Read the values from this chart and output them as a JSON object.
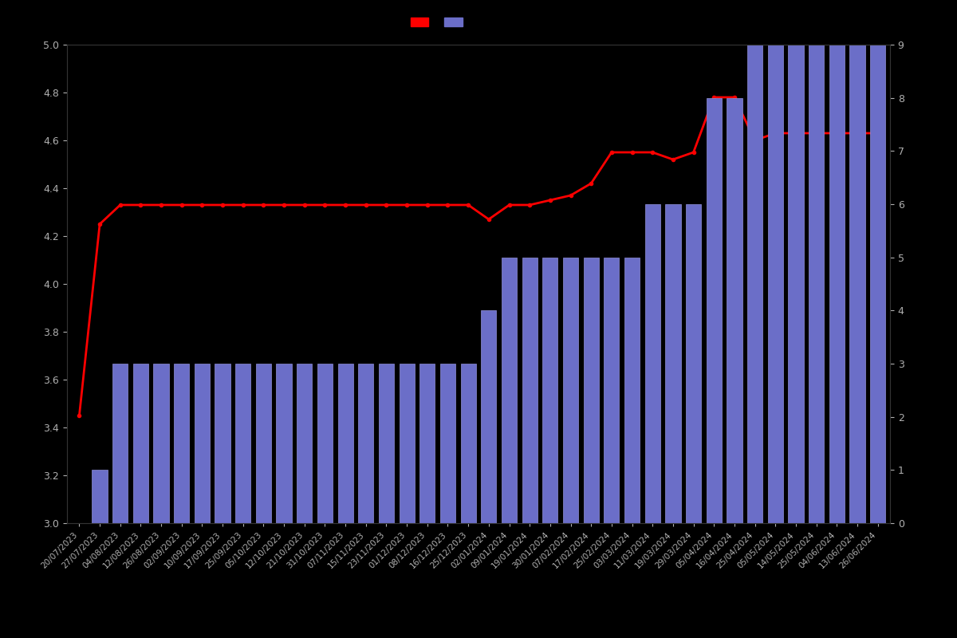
{
  "dates": [
    "20/07/2023",
    "27/07/2023",
    "04/08/2023",
    "12/08/2023",
    "26/08/2023",
    "02/09/2023",
    "10/09/2023",
    "17/09/2023",
    "25/09/2023",
    "05/10/2023",
    "12/10/2023",
    "21/10/2023",
    "31/10/2023",
    "07/11/2023",
    "15/11/2023",
    "23/11/2023",
    "01/12/2023",
    "08/12/2023",
    "16/12/2023",
    "25/12/2023",
    "02/01/2024",
    "09/01/2024",
    "19/01/2024",
    "30/01/2024",
    "07/02/2024",
    "17/02/2024",
    "25/02/2024",
    "03/03/2024",
    "11/03/2024",
    "19/03/2024",
    "29/03/2024",
    "05/04/2024",
    "16/04/2024",
    "25/04/2024",
    "05/05/2024",
    "14/05/2024",
    "25/05/2024",
    "04/06/2024",
    "13/06/2024",
    "26/06/2024"
  ],
  "bar_values": [
    0,
    1,
    3,
    3,
    3,
    3,
    3,
    3,
    3,
    3,
    3,
    3,
    3,
    3,
    3,
    3,
    3,
    3,
    3,
    3,
    4,
    5,
    5,
    5,
    5,
    5,
    5,
    5,
    6,
    6,
    6,
    8,
    8,
    9,
    9,
    9,
    9,
    9,
    9,
    9
  ],
  "line_values": [
    3.45,
    4.25,
    4.33,
    4.33,
    4.33,
    4.33,
    4.33,
    4.33,
    4.33,
    4.33,
    4.33,
    4.33,
    4.33,
    4.33,
    4.33,
    4.33,
    4.33,
    4.33,
    4.33,
    4.33,
    4.27,
    4.33,
    4.33,
    4.35,
    4.37,
    4.42,
    4.55,
    4.55,
    4.55,
    4.52,
    4.55,
    4.78,
    4.78,
    4.6,
    4.63,
    4.63,
    4.63,
    4.63,
    4.63,
    4.63
  ],
  "bar_color": "#6b6ec8",
  "bar_edgecolor": "#9090d8",
  "line_color": "#ff0000",
  "background_color": "#000000",
  "text_color": "#b0b0b0",
  "ylim_left": [
    3.0,
    5.0
  ],
  "ylim_right": [
    0,
    9
  ],
  "yticks_left": [
    3.0,
    3.2,
    3.4,
    3.6,
    3.8,
    4.0,
    4.2,
    4.4,
    4.6,
    4.8,
    5.0
  ],
  "yticks_right": [
    0,
    1,
    2,
    3,
    4,
    5,
    6,
    7,
    8,
    9
  ],
  "legend_colors": [
    "#ff0000",
    "#6b6ec8"
  ],
  "line_marker": "o",
  "line_markersize": 3,
  "line_linewidth": 2
}
